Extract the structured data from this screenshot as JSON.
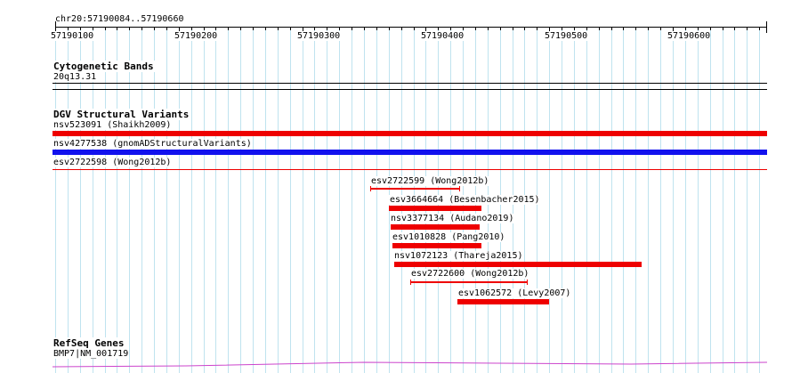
{
  "location": "chr20:57190084..57190660",
  "ruler": {
    "labels": [
      "57190100",
      "57190200",
      "57190300",
      "57190400",
      "57190500",
      "57190600"
    ]
  },
  "tracks": {
    "cytoband": {
      "title": "Cytogenetic Bands",
      "band": "20q13.31"
    },
    "dgv": {
      "title": "DGV Structural Variants",
      "features": [
        {
          "label": "nsv523091 (Shaikh2009)",
          "color": "#ee0000"
        },
        {
          "label": "nsv4277538 (gnomADStructuralVariants)",
          "color": "#1111ee"
        },
        {
          "label": "esv2722598 (Wong2012b)",
          "color": "#ee0000"
        },
        {
          "label": "esv2722599 (Wong2012b)",
          "color": "#ee0000"
        },
        {
          "label": "esv3664664 (Besenbacher2015)",
          "color": "#ee0000"
        },
        {
          "label": "nsv3377134 (Audano2019)",
          "color": "#ee0000"
        },
        {
          "label": "esv1010828 (Pang2010)",
          "color": "#ee0000"
        },
        {
          "label": "nsv1072123 (Thareja2015)",
          "color": "#ee0000"
        },
        {
          "label": "esv2722600 (Wong2012b)",
          "color": "#ee0000"
        },
        {
          "label": "esv1062572 (Levy2007)",
          "color": "#ee0000"
        }
      ]
    },
    "refseq": {
      "title": "RefSeq Genes",
      "gene": "BMP7|NM_001719",
      "color": "#cc44cc"
    }
  }
}
